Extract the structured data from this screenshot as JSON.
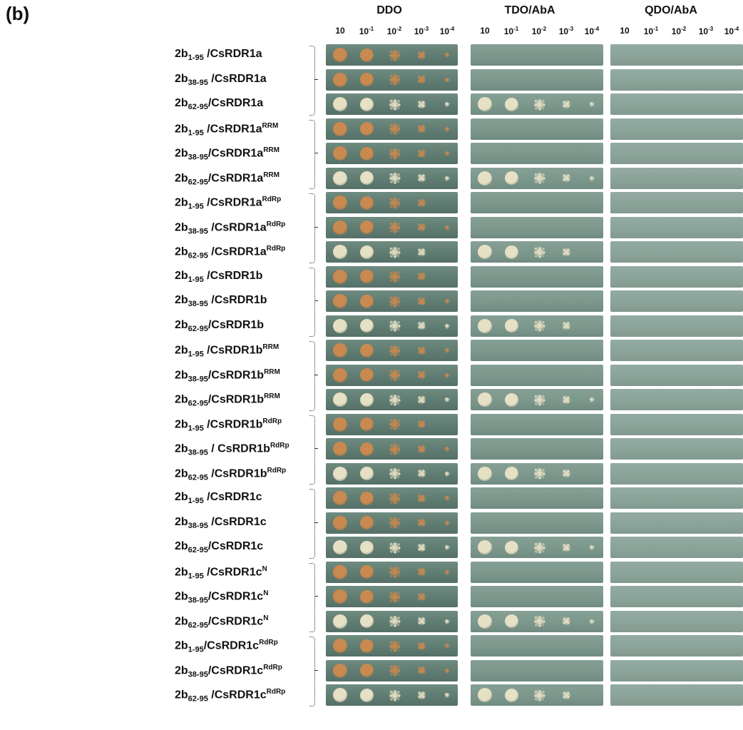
{
  "figure": {
    "panel_label": "(b)",
    "conditions": [
      "DDO",
      "TDO/AbA",
      "QDO/AbA"
    ],
    "dilutions": [
      {
        "base": "10",
        "exp": ""
      },
      {
        "base": "10",
        "exp": "-1"
      },
      {
        "base": "10",
        "exp": "-2"
      },
      {
        "base": "10",
        "exp": "-3"
      },
      {
        "base": "10",
        "exp": "-4"
      }
    ],
    "rows": [
      {
        "prefix": "2b",
        "sub": "1-95",
        "sep": " /",
        "target": "CsRDR1a",
        "sup": ""
      },
      {
        "prefix": "2b",
        "sub": "38-95",
        "sep": " /",
        "target": "CsRDR1a",
        "sup": ""
      },
      {
        "prefix": "2b",
        "sub": "62-95",
        "sep": "/",
        "target": "CsRDR1a",
        "sup": ""
      },
      {
        "prefix": "2b",
        "sub": "1-95",
        "sep": " /",
        "target": "CsRDR1a",
        "sup": "RRM"
      },
      {
        "prefix": "2b",
        "sub": "38-95",
        "sep": "/",
        "target": "CsRDR1a",
        "sup": "RRM"
      },
      {
        "prefix": "2b",
        "sub": "62-95",
        "sep": "/",
        "target": "CsRDR1a",
        "sup": "RRM"
      },
      {
        "prefix": "2b",
        "sub": "1-95",
        "sep": " /",
        "target": "CsRDR1a",
        "sup": "RdRp"
      },
      {
        "prefix": "2b",
        "sub": "38-95",
        "sep": " /",
        "target": "CsRDR1a",
        "sup": "RdRp"
      },
      {
        "prefix": "2b",
        "sub": "62-95",
        "sep": " /",
        "target": "CsRDR1a",
        "sup": "RdRp"
      },
      {
        "prefix": "2b",
        "sub": "1-95",
        "sep": " /",
        "target": "CsRDR1b",
        "sup": ""
      },
      {
        "prefix": "2b",
        "sub": "38-95",
        "sep": " /",
        "target": "CsRDR1b",
        "sup": ""
      },
      {
        "prefix": "2b",
        "sub": "62-95",
        "sep": "/",
        "target": "CsRDR1b",
        "sup": ""
      },
      {
        "prefix": "2b",
        "sub": "1-95",
        "sep": " /",
        "target": "CsRDR1b",
        "sup": "RRM"
      },
      {
        "prefix": "2b",
        "sub": "38-95",
        "sep": "/",
        "target": "CsRDR1b",
        "sup": "RRM"
      },
      {
        "prefix": "2b",
        "sub": "62-95",
        "sep": "/",
        "target": "CsRDR1b",
        "sup": "RRM"
      },
      {
        "prefix": "2b",
        "sub": "1-95",
        "sep": " /",
        "target": "CsRDR1b",
        "sup": "RdRp"
      },
      {
        "prefix": "2b",
        "sub": "38-95",
        "sep": " / ",
        "target": "CsRDR1b",
        "sup": "RdRp"
      },
      {
        "prefix": "2b",
        "sub": "62-95",
        "sep": " /",
        "target": "CsRDR1b",
        "sup": "RdRp"
      },
      {
        "prefix": "2b",
        "sub": "1-95",
        "sep": " /",
        "target": "CsRDR1c",
        "sup": ""
      },
      {
        "prefix": "2b",
        "sub": "38-95",
        "sep": " /",
        "target": "CsRDR1c",
        "sup": ""
      },
      {
        "prefix": "2b",
        "sub": "62-95",
        "sep": "/",
        "target": "CsRDR1c",
        "sup": ""
      },
      {
        "prefix": "2b",
        "sub": "1-95",
        "sep": " /",
        "target": "CsRDR1c",
        "sup": "N"
      },
      {
        "prefix": "2b",
        "sub": "38-95",
        "sep": "/",
        "target": "CsRDR1c",
        "sup": "N"
      },
      {
        "prefix": "2b",
        "sub": "62-95",
        "sep": "/",
        "target": "CsRDR1c",
        "sup": "N"
      },
      {
        "prefix": "2b",
        "sub": "1-95",
        "sep": "/",
        "target": "CsRDR1c",
        "sup": "RdRp"
      },
      {
        "prefix": "2b",
        "sub": "38-95",
        "sep": "/",
        "target": "CsRDR1c",
        "sup": "RdRp"
      },
      {
        "prefix": "2b",
        "sub": "62-95",
        "sep": " /",
        "target": "CsRDR1c",
        "sup": "RdRp"
      }
    ],
    "growth": {
      "DDO": [
        5,
        5,
        5,
        5,
        5,
        5,
        4,
        5,
        4,
        4,
        5,
        5,
        5,
        5,
        5,
        4,
        5,
        5,
        5,
        5,
        5,
        5,
        4,
        5,
        5,
        5,
        5
      ],
      "TDO/AbA": [
        0,
        0,
        5,
        0,
        0,
        5,
        0,
        0,
        4,
        0,
        0,
        4,
        0,
        0,
        5,
        0,
        0,
        4,
        0,
        0,
        5,
        0,
        0,
        5,
        0,
        0,
        4
      ],
      "QDO/AbA": [
        0,
        0,
        0,
        0,
        0,
        0,
        0,
        0,
        0,
        0,
        0,
        0,
        0,
        0,
        0,
        0,
        0,
        0,
        0,
        0,
        0,
        0,
        0,
        0,
        0,
        0,
        0
      ]
    },
    "colors": {
      "orange_colony": "#c9894f",
      "pale_colony": "#e6e0c4",
      "agar_ddo": "#5f7c72",
      "agar_tdo": "#7b968b",
      "agar_qdo": "#8aa399"
    }
  }
}
